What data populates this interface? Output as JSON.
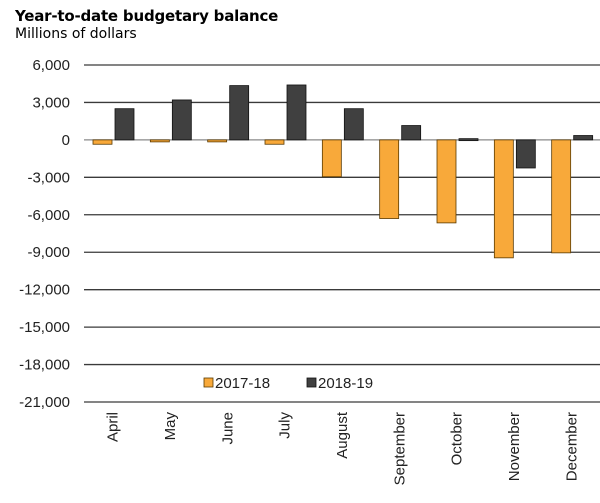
{
  "chart_data": {
    "type": "bar",
    "title": "Year-to-date budgetary balance",
    "subtitle": "Millions of dollars",
    "xlabel": "",
    "ylabel": "",
    "categories": [
      "April",
      "May",
      "June",
      "July",
      "August",
      "September",
      "October",
      "November",
      "December"
    ],
    "series": [
      {
        "name": "2017-18",
        "color": "#F8A93A",
        "values": [
          -350,
          -100,
          -100,
          -350,
          -2950,
          -6300,
          -6650,
          -9450,
          -9050
        ]
      },
      {
        "name": "2018-19",
        "color": "#404040",
        "values": [
          2500,
          3200,
          4350,
          4400,
          2500,
          1150,
          100,
          -2250,
          350
        ]
      }
    ],
    "ylim": [
      -21000,
      6000
    ],
    "yticks": [
      6000,
      3000,
      0,
      -3000,
      -6000,
      -9000,
      -12000,
      -15000,
      -18000,
      -21000
    ],
    "ytick_labels": [
      "6,000",
      "3,000",
      "0",
      "-3,000",
      "-6,000",
      "-9,000",
      "-12,000",
      "-15,000",
      "-18,000",
      "-21,000"
    ],
    "grid": true,
    "legend_position": "bottom-center-inside"
  }
}
